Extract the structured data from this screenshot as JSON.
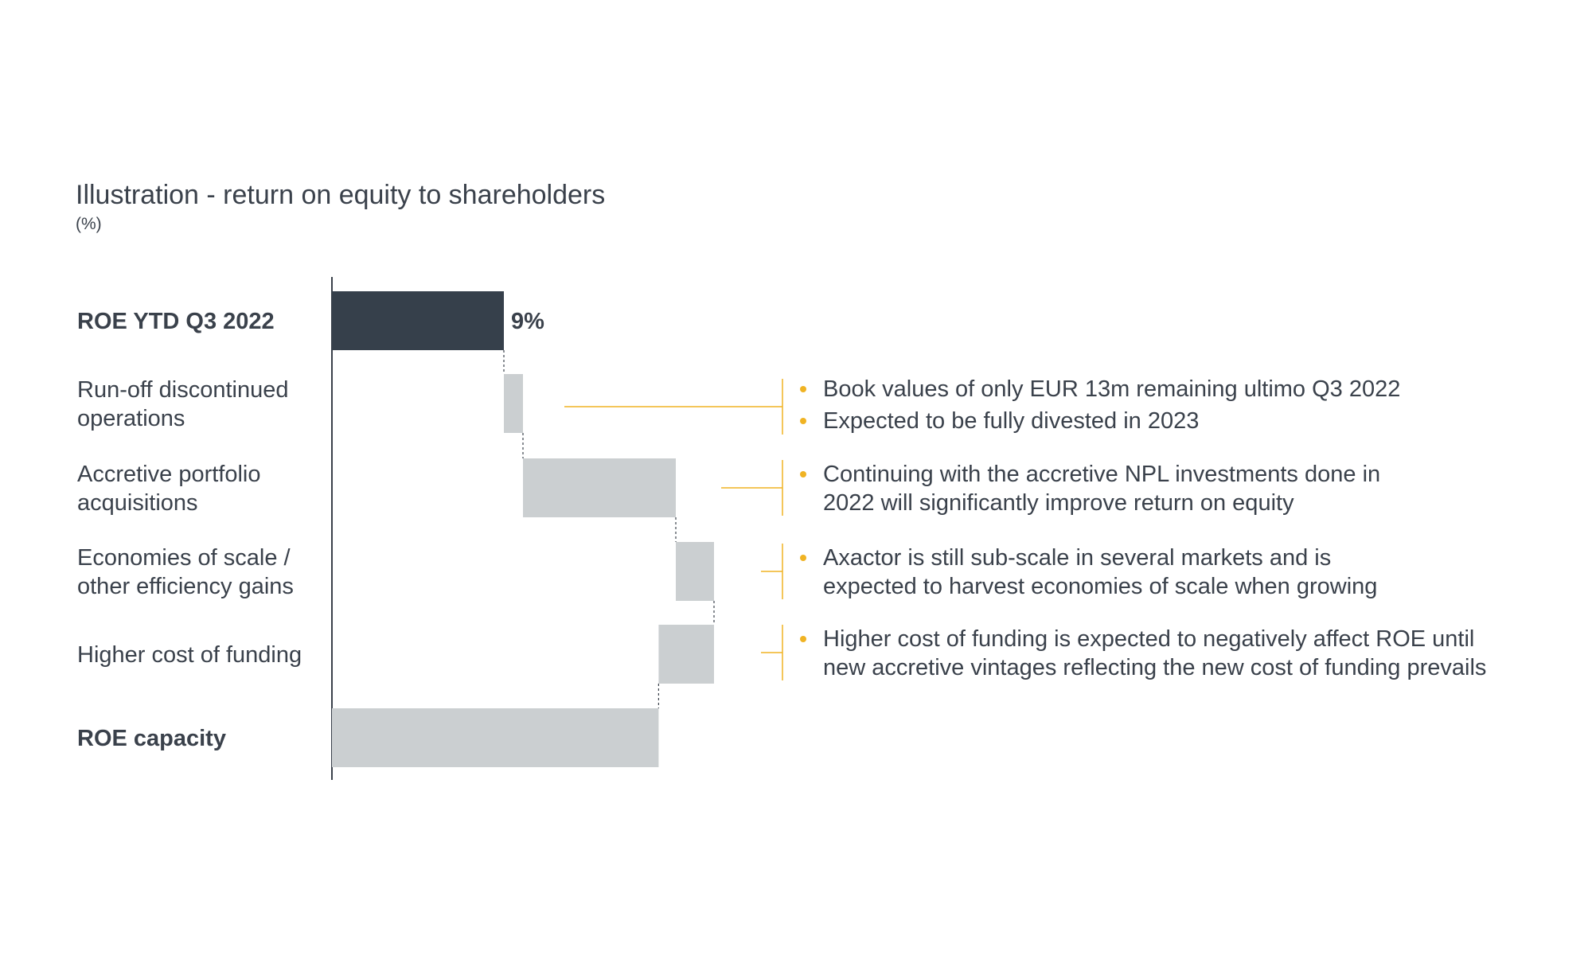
{
  "title": "Illustration - return on equity to shareholders",
  "subtitle": "(%)",
  "colors": {
    "dark_bar": "#36404b",
    "light_bar": "#cbcfd1",
    "accent": "#f0b323",
    "text": "#3a414b"
  },
  "chart_data": {
    "type": "bar",
    "subtype": "waterfall-horizontal",
    "categories": [
      [
        "ROE YTD Q3 2022"
      ],
      [
        "Run-off discontinued",
        "operations"
      ],
      [
        "Accretive portfolio",
        "acquisitions"
      ],
      [
        "Economies of scale /",
        "other efficiency gains"
      ],
      [
        "Higher cost of funding"
      ],
      [
        "ROE capacity"
      ]
    ],
    "bold": [
      true,
      false,
      false,
      false,
      false,
      true
    ],
    "bars": [
      {
        "start": 0,
        "end": 9,
        "kind": "total"
      },
      {
        "start": 9,
        "end": 10,
        "kind": "delta"
      },
      {
        "start": 10,
        "end": 18,
        "kind": "delta"
      },
      {
        "start": 18,
        "end": 20,
        "kind": "delta"
      },
      {
        "start": 20,
        "end": 17.1,
        "kind": "delta"
      },
      {
        "start": 0,
        "end": 17.1,
        "kind": "total"
      }
    ],
    "data_labels": [
      "9%",
      "",
      "",
      "",
      "",
      ""
    ],
    "xlim": [
      0,
      21
    ]
  },
  "annotations": [
    {
      "bullets": [
        "Book values of only EUR 13m remaining ultimo Q3 2022",
        "Expected to be fully divested in 2023"
      ]
    },
    {
      "bullets": [
        "Continuing with the accretive NPL investments done in\n2022 will significantly improve return on equity"
      ]
    },
    {
      "bullets": [
        "Axactor is still sub-scale in several markets and is\nexpected to harvest economies of scale when growing"
      ]
    },
    {
      "bullets": [
        "Higher cost of funding is expected to negatively affect ROE until\nnew accretive vintages reflecting the new cost of funding prevails"
      ]
    }
  ]
}
